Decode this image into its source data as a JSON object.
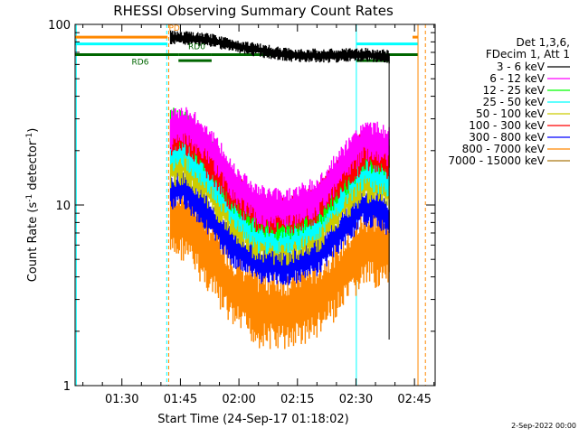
{
  "chart_data": {
    "type": "line",
    "title": "RHESSI Observing Summary Count Rates",
    "xlabel": "Start Time (24-Sep-17 01:18:02)",
    "ylabel_main": "Count Rate (s",
    "ylabel_sup1": "-1",
    "ylabel_mid": " detector",
    "ylabel_sup2": "-1",
    "ylabel_end": ")",
    "yscale": "log",
    "ylim": [
      1,
      100
    ],
    "xlim_minutes": [
      78.0,
      170.3
    ],
    "x_tick_labels": [
      "01:30",
      "01:45",
      "02:00",
      "02:15",
      "02:30",
      "02:45"
    ],
    "x_ticks_minutes": [
      90,
      105,
      120,
      135,
      150,
      165
    ],
    "y_tick_labels": [
      "1",
      "10",
      "100"
    ],
    "y_ticks": [
      1,
      10,
      100
    ],
    "grid": false,
    "legend_position": "right",
    "legend_header": [
      "Det 1,3,6,",
      "FDecim 1, Att 1"
    ],
    "footer_date": "2-Sep-2022 00:00",
    "colors": {
      "c1": "#000000",
      "c2": "#ff00ff",
      "c3": "#00ff00",
      "c4": "#00ffff",
      "c5": "#cccc00",
      "c6": "#ff0000",
      "c7": "#0000ff",
      "c8": "#ff8800",
      "c9": "#aa7711"
    },
    "data_window_minutes": [
      102.5,
      158.5
    ],
    "series": [
      {
        "name": "3 - 6 keV",
        "color": "#000000",
        "x": [
          102.5,
          112,
          122,
          132,
          142,
          152,
          158.5
        ],
        "y": [
          85,
          82,
          74,
          68,
          67,
          68,
          66
        ]
      },
      {
        "name": "6 - 12 keV",
        "color": "#ff00ff",
        "x": [
          102.5,
          106,
          112,
          118,
          125,
          132,
          140,
          148,
          152,
          156,
          158.5
        ],
        "y": [
          26,
          28,
          22,
          14,
          10,
          9.5,
          11,
          18,
          23,
          22,
          21
        ]
      },
      {
        "name": "12 - 25 keV",
        "color": "#00ff00",
        "x": [
          102.5,
          106,
          112,
          118,
          125,
          132,
          140,
          148,
          152,
          156,
          158.5
        ],
        "y": [
          27,
          26,
          19,
          12,
          8.5,
          8.2,
          9.5,
          15,
          20,
          19,
          18
        ]
      },
      {
        "name": "25 - 50 keV",
        "color": "#00ffff",
        "x": [
          102.5,
          106,
          112,
          118,
          125,
          132,
          140,
          148,
          152,
          156,
          158.5
        ],
        "y": [
          20,
          21,
          15,
          10,
          7,
          6.8,
          8,
          13,
          16,
          15,
          14
        ]
      },
      {
        "name": "50 - 100 keV",
        "color": "#cccc00",
        "x": [
          102.5,
          106,
          112,
          118,
          125,
          132,
          140,
          148,
          152,
          156,
          158.5
        ],
        "y": [
          16,
          17,
          12.5,
          8.5,
          6.2,
          6,
          7,
          11,
          13.5,
          13,
          12
        ]
      },
      {
        "name": "100 - 300 keV",
        "color": "#ff0000",
        "x": [
          102.5,
          106,
          112,
          118,
          125,
          132,
          140,
          148,
          152,
          156,
          158.5
        ],
        "y": [
          24,
          25,
          18,
          12,
          9,
          8.8,
          10,
          16,
          20,
          19,
          18
        ]
      },
      {
        "name": "300 - 800 keV",
        "color": "#0000ff",
        "x": [
          102.5,
          106,
          112,
          118,
          125,
          132,
          140,
          148,
          152,
          156,
          158.5
        ],
        "y": [
          12,
          12.5,
          9,
          6,
          4.8,
          4.6,
          5.2,
          8,
          10,
          9.5,
          8.5
        ]
      },
      {
        "name": "800 - 7000 keV",
        "color": "#ff8800",
        "x": [
          102.5,
          106,
          112,
          118,
          125,
          132,
          140,
          148,
          152,
          156,
          158.5
        ],
        "y": [
          8,
          8.2,
          5.5,
          3.5,
          2.7,
          2.6,
          3,
          4.5,
          5.8,
          5.8,
          5.5
        ]
      },
      {
        "name": "7000 - 15000 keV",
        "color": "#aa7711",
        "x": [],
        "y": []
      }
    ],
    "attenuator_levels": [
      {
        "color": "#ff8800",
        "y": 85,
        "segments": [
          [
            78,
            101.7
          ],
          [
            164.5,
            165.8
          ]
        ]
      },
      {
        "color": "#00ffff",
        "y": 78,
        "segments": [
          [
            78,
            101.7
          ],
          [
            150.1,
            165.8
          ]
        ]
      },
      {
        "color": "#006600",
        "y": 68,
        "segments": [
          [
            78,
            104.5
          ],
          [
            104.5,
            113
          ],
          [
            113,
            150.1
          ],
          [
            150.1,
            165.8
          ]
        ]
      },
      {
        "color": "#006600",
        "y": 63,
        "segments": [
          [
            104.5,
            113
          ],
          [
            150.1,
            158.5
          ]
        ]
      }
    ],
    "annotations": [
      {
        "text": "RD6",
        "color": "#006600",
        "x": 92.5,
        "y": 60
      },
      {
        "text": "RD0",
        "color": "#006600",
        "x": 107,
        "y": 73
      },
      {
        "text": "PD",
        "color": "#ff8800",
        "x": 102,
        "y": 92
      }
    ],
    "vertical_markers": [
      {
        "x": 78.3,
        "color": "#00ffff",
        "style": "solid"
      },
      {
        "x": 101.5,
        "color": "#00ffff",
        "style": "dashed"
      },
      {
        "x": 102.0,
        "color": "#ff8800",
        "style": "dashed"
      },
      {
        "x": 150.1,
        "color": "#00ffff",
        "style": "solid"
      },
      {
        "x": 165.9,
        "color": "#ff8800",
        "style": "solid"
      },
      {
        "x": 167.8,
        "color": "#ff8800",
        "style": "dashed"
      }
    ]
  }
}
